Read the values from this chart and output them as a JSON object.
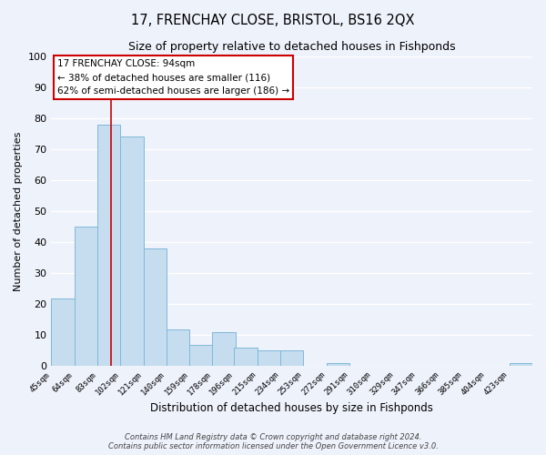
{
  "title": "17, FRENCHAY CLOSE, BRISTOL, BS16 2QX",
  "subtitle": "Size of property relative to detached houses in Fishponds",
  "xlabel": "Distribution of detached houses by size in Fishponds",
  "ylabel": "Number of detached properties",
  "bar_labels": [
    "45sqm",
    "64sqm",
    "83sqm",
    "102sqm",
    "121sqm",
    "140sqm",
    "159sqm",
    "178sqm",
    "196sqm",
    "215sqm",
    "234sqm",
    "253sqm",
    "272sqm",
    "291sqm",
    "310sqm",
    "329sqm",
    "347sqm",
    "366sqm",
    "385sqm",
    "404sqm",
    "423sqm"
  ],
  "bar_values": [
    22,
    45,
    78,
    74,
    38,
    12,
    7,
    11,
    6,
    5,
    5,
    0,
    1,
    0,
    0,
    0,
    0,
    0,
    0,
    0,
    1
  ],
  "bar_color": "#c6dcef",
  "bar_edge_color": "#7fb9d9",
  "ylim": [
    0,
    100
  ],
  "vline_x": 94,
  "bin_edges_sqm": [
    45,
    64,
    83,
    102,
    121,
    140,
    159,
    178,
    196,
    215,
    234,
    253,
    272,
    291,
    310,
    329,
    347,
    366,
    385,
    404,
    423
  ],
  "bin_width": 19,
  "annotation_text": "17 FRENCHAY CLOSE: 94sqm\n← 38% of detached houses are smaller (116)\n62% of semi-detached houses are larger (186) →",
  "annotation_box_color": "#ffffff",
  "annotation_box_edgecolor": "#cc0000",
  "vline_color": "#cc0000",
  "footer_line1": "Contains HM Land Registry data © Crown copyright and database right 2024.",
  "footer_line2": "Contains public sector information licensed under the Open Government Licence v3.0.",
  "background_color": "#eef2fb",
  "grid_color": "#ffffff",
  "yticks": [
    0,
    10,
    20,
    30,
    40,
    50,
    60,
    70,
    80,
    90,
    100
  ]
}
